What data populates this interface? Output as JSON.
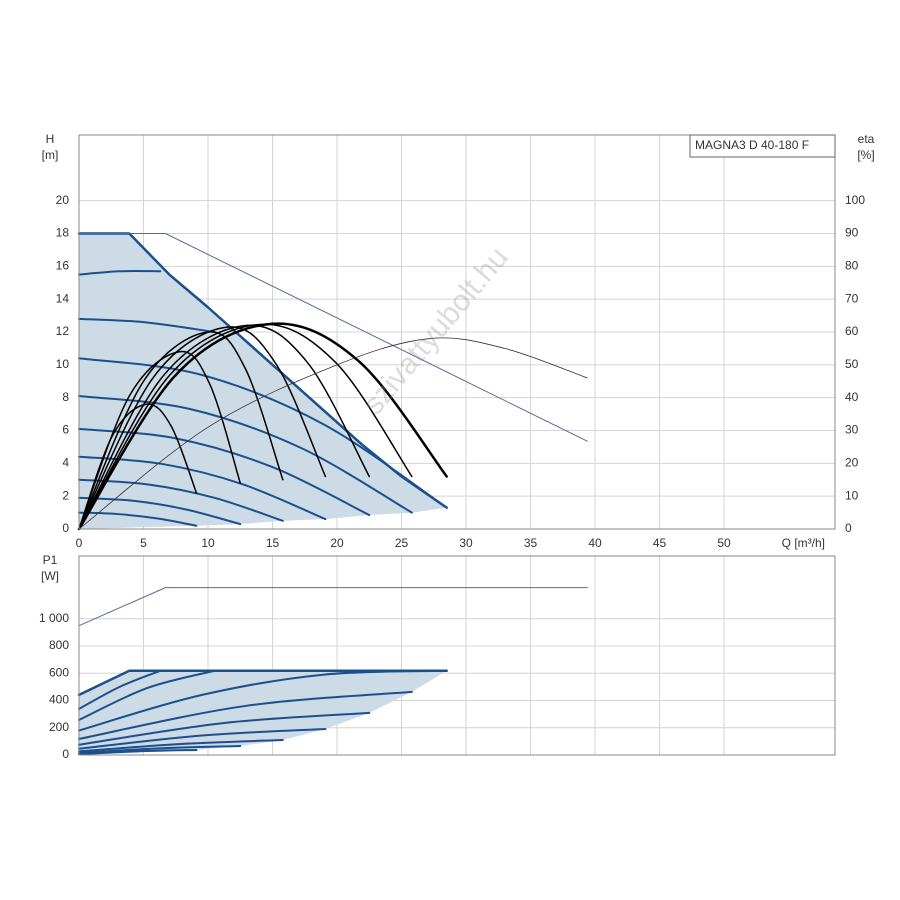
{
  "chart_data": [
    {
      "type": "line",
      "annotation": "MAGNA3 D 40-180 F",
      "watermark": "szivattyubolt.hu",
      "ylabel": "H",
      "yunit": "[m]",
      "y2label": "eta",
      "y2unit": "[%]",
      "xlabel": "Q [m³/h]",
      "xlim": [
        0,
        58.6
      ],
      "xticks": [
        0,
        5,
        10,
        15,
        20,
        25,
        30,
        35,
        40,
        45,
        50
      ],
      "ylim": [
        0,
        24
      ],
      "yticks": [
        0,
        2,
        4,
        6,
        8,
        10,
        12,
        14,
        16,
        18,
        20
      ],
      "y2lim": [
        0,
        120
      ],
      "y2ticks": [
        0,
        10,
        20,
        30,
        40,
        50,
        60,
        70,
        80,
        90,
        100
      ],
      "grid": true,
      "area_color": "#cddbe7",
      "series": [
        {
          "color": "#1c4f8c",
          "width": 2.5,
          "x": [
            0,
            3.9,
            7,
            10,
            13,
            16,
            19,
            22,
            25,
            28.5
          ],
          "values": [
            18,
            18,
            15.5,
            13.5,
            11.4,
            9.3,
            7.2,
            5.1,
            3.2,
            1.3
          ]
        },
        {
          "color": "#1c4f8c",
          "width": 2,
          "smooth": true,
          "x": [
            0,
            3.15,
            6.3
          ],
          "values": [
            15.5,
            15.7,
            15.7
          ]
        },
        {
          "color": "#1c4f8c",
          "width": 2,
          "smooth": true,
          "x": [
            0,
            5,
            10.5
          ],
          "values": [
            12.8,
            12.6,
            12.0
          ]
        },
        {
          "color": "#1c4f8c",
          "width": 2,
          "smooth": true,
          "x": [
            0,
            9.5,
            19,
            28.5
          ],
          "values": [
            10.4,
            9.39,
            6.36,
            1.3
          ]
        },
        {
          "color": "#1c4f8c",
          "width": 2,
          "smooth": true,
          "x": [
            0,
            8.6,
            17.2,
            25.8
          ],
          "values": [
            8.1,
            7.31,
            4.94,
            1.0
          ]
        },
        {
          "color": "#1c4f8c",
          "width": 2,
          "smooth": true,
          "x": [
            0,
            7.5,
            15,
            22.5
          ],
          "values": [
            6.1,
            5.52,
            3.77,
            0.85
          ]
        },
        {
          "color": "#1c4f8c",
          "width": 2,
          "smooth": true,
          "x": [
            0,
            6.4,
            12.7,
            19.1
          ],
          "values": [
            4.4,
            3.97,
            2.72,
            0.6
          ]
        },
        {
          "color": "#1c4f8c",
          "width": 2,
          "smooth": true,
          "x": [
            0,
            5.3,
            10.5,
            15.8
          ],
          "values": [
            3.0,
            2.72,
            1.9,
            0.5
          ]
        },
        {
          "color": "#1c4f8c",
          "width": 2,
          "smooth": true,
          "x": [
            0,
            4.2,
            8.3,
            12.5
          ],
          "values": [
            1.9,
            1.72,
            1.19,
            0.3
          ]
        },
        {
          "color": "#1c4f8c",
          "width": 2,
          "smooth": true,
          "x": [
            0,
            3,
            6.1,
            9.1
          ],
          "values": [
            1.0,
            0.91,
            0.64,
            0.2
          ]
        },
        {
          "color": "#5a6a98",
          "width": 1,
          "x": [
            0,
            6.7,
            39.4
          ],
          "values": [
            18,
            18,
            5.35
          ]
        },
        {
          "color": "#000000",
          "width": 1.5,
          "smooth": true,
          "axis": "y2",
          "x": [
            0,
            2.6,
            5.2,
            7.15,
            9.1
          ],
          "values": [
            0,
            28.5,
            38,
            31.3,
            11
          ]
        },
        {
          "color": "#000000",
          "width": 1.5,
          "smooth": true,
          "axis": "y2",
          "x": [
            0,
            3.9,
            7.8,
            10.15,
            12.5
          ],
          "values": [
            0,
            40.5,
            54,
            44,
            14
          ]
        },
        {
          "color": "#000000",
          "width": 1.5,
          "smooth": true,
          "axis": "y2",
          "x": [
            0,
            5,
            10,
            12.9,
            15.8
          ],
          "values": [
            0,
            45,
            60,
            48.8,
            15
          ]
        },
        {
          "color": "#000000",
          "width": 1.5,
          "smooth": true,
          "axis": "y2",
          "x": [
            0,
            5.75,
            11.5,
            15.3,
            19.1
          ],
          "values": [
            0,
            46.1,
            61.5,
            50.1,
            16
          ]
        },
        {
          "color": "#000000",
          "width": 1.5,
          "smooth": true,
          "axis": "y2",
          "x": [
            0,
            6.5,
            13,
            17.75,
            22.5
          ],
          "values": [
            0,
            46.5,
            62,
            50.5,
            16
          ]
        },
        {
          "color": "#000000",
          "width": 1.5,
          "smooth": true,
          "axis": "y2",
          "x": [
            0,
            7,
            14,
            19.9,
            25.8
          ],
          "values": [
            0,
            46.7,
            62.3,
            50.7,
            16
          ]
        },
        {
          "color": "#000000",
          "width": 2.5,
          "smooth": true,
          "axis": "y2",
          "x": [
            0,
            7.5,
            15,
            21.75,
            28.5
          ],
          "values": [
            0,
            46.9,
            62.5,
            50.9,
            16
          ]
        },
        {
          "color": "#333333",
          "width": 0.8,
          "smooth": true,
          "axis": "y2",
          "x": [
            0,
            10,
            20,
            27.2,
            33,
            39.4
          ],
          "values": [
            0,
            31,
            50,
            58,
            55,
            46
          ]
        }
      ]
    },
    {
      "type": "line",
      "ylabel": "P1",
      "yunit": "[W]",
      "xlim": [
        0,
        58.6
      ],
      "xticks": [
        0,
        5,
        10,
        15,
        20,
        25,
        30,
        35,
        40,
        45,
        50
      ],
      "ylim": [
        0,
        1460
      ],
      "yticks": [
        0,
        200,
        400,
        600,
        800,
        {
          "value": 1000,
          "label": "1 000"
        }
      ],
      "grid": true,
      "area_color": "#cddbe7",
      "series": [
        {
          "color": "#1c4f8c",
          "width": 2.5,
          "x": [
            0,
            3.9,
            28.5
          ],
          "values": [
            441,
            618,
            618
          ]
        },
        {
          "color": "#1c4f8c",
          "width": 2,
          "smooth": true,
          "x": [
            0,
            3.15,
            6.3
          ],
          "values": [
            338,
            500,
            618
          ]
        },
        {
          "color": "#1c4f8c",
          "width": 2,
          "smooth": true,
          "x": [
            0,
            5.25,
            10.5
          ],
          "values": [
            257,
            490,
            618
          ]
        },
        {
          "color": "#1c4f8c",
          "width": 2,
          "smooth": true,
          "x": [
            0,
            9.5,
            19,
            28.5
          ],
          "values": [
            180,
            440,
            590,
            618
          ]
        },
        {
          "color": "#1c4f8c",
          "width": 2,
          "smooth": true,
          "x": [
            0,
            12.9,
            25.8
          ],
          "values": [
            118,
            360,
            463
          ]
        },
        {
          "color": "#1c4f8c",
          "width": 2,
          "smooth": true,
          "x": [
            0,
            11.25,
            22.5
          ],
          "values": [
            75,
            235,
            309
          ]
        },
        {
          "color": "#1c4f8c",
          "width": 2,
          "smooth": true,
          "x": [
            0,
            9.55,
            19.1
          ],
          "values": [
            46,
            143,
            191
          ]
        },
        {
          "color": "#1c4f8c",
          "width": 2,
          "smooth": true,
          "x": [
            0,
            7.9,
            15.8
          ],
          "values": [
            27,
            81,
            110
          ]
        },
        {
          "color": "#1c4f8c",
          "width": 2,
          "smooth": true,
          "x": [
            0,
            6.25,
            12.5
          ],
          "values": [
            15,
            49,
            66
          ]
        },
        {
          "color": "#1c4f8c",
          "width": 2,
          "smooth": true,
          "x": [
            0,
            4.55,
            9.1
          ],
          "values": [
            7,
            27,
            37
          ]
        },
        {
          "color": "#5a6a98",
          "width": 1,
          "x": [
            0,
            6.7,
            39.4
          ],
          "values": [
            949,
            1228,
            1228
          ]
        }
      ]
    }
  ]
}
